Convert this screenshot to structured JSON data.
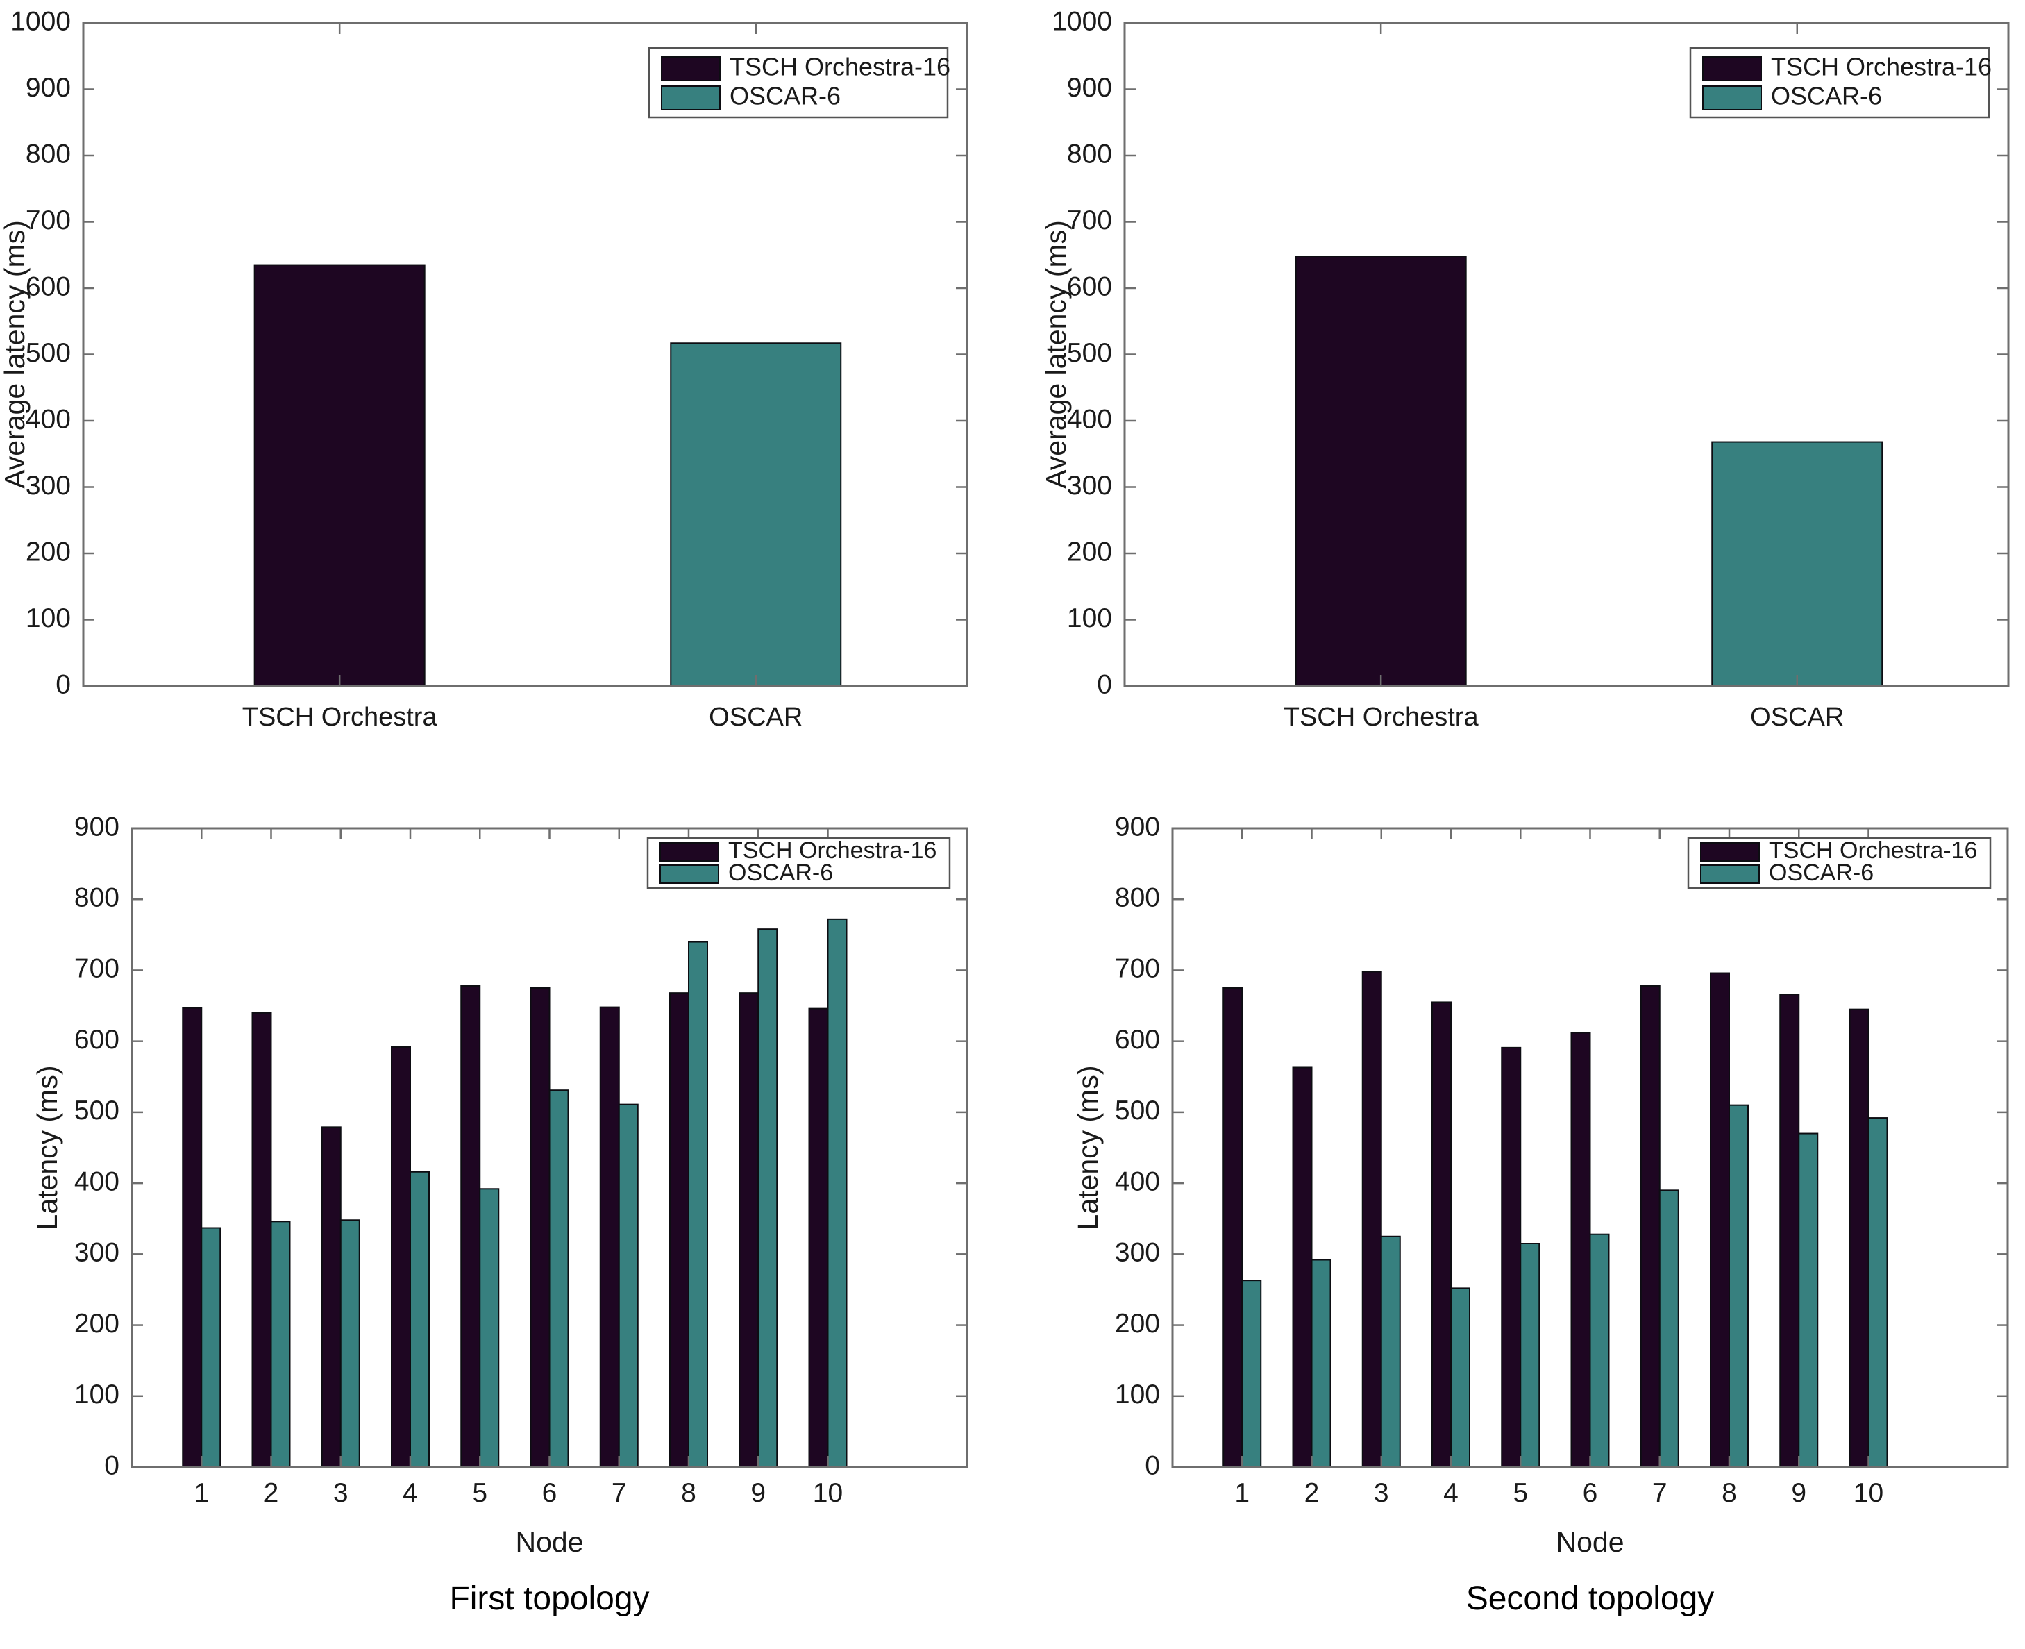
{
  "figure": {
    "background": "#ffffff",
    "axis_color": "#6e6e6e",
    "text_color": "#1a1a1a",
    "bar_edge_color": "#0d0d12",
    "legend_border_color": "#545454",
    "series_palette": [
      {
        "name": "TSCH Orchestra-16",
        "color": "#1e0622"
      },
      {
        "name": "OSCAR-6",
        "color": "#37807f"
      }
    ]
  },
  "chart_data": [
    {
      "id": "first-topology-average",
      "type": "bar",
      "categories": [
        "TSCH Orchestra",
        "OSCAR"
      ],
      "values": [
        635,
        517
      ],
      "bar_colors": [
        "#1e0622",
        "#37807f"
      ],
      "title": "",
      "xlabel": "",
      "ylabel": "Average latency (ms)",
      "caption": "",
      "ylim": [
        0,
        1000
      ],
      "ytick_step": 100,
      "grid": false,
      "legend": {
        "position": "top-right",
        "entries": [
          {
            "label": "TSCH Orchestra-16",
            "color": "#1e0622"
          },
          {
            "label": "OSCAR-6",
            "color": "#37807f"
          }
        ]
      }
    },
    {
      "id": "second-topology-average",
      "type": "bar",
      "categories": [
        "TSCH Orchestra",
        "OSCAR"
      ],
      "values": [
        648,
        368
      ],
      "bar_colors": [
        "#1e0622",
        "#37807f"
      ],
      "title": "",
      "xlabel": "",
      "ylabel": "Average latency (ms)",
      "caption": "",
      "ylim": [
        0,
        1000
      ],
      "ytick_step": 100,
      "grid": false,
      "legend": {
        "position": "top-right",
        "entries": [
          {
            "label": "TSCH Orchestra-16",
            "color": "#1e0622"
          },
          {
            "label": "OSCAR-6",
            "color": "#37807f"
          }
        ]
      }
    },
    {
      "id": "first-topology-per-node",
      "type": "bar",
      "categories": [
        "1",
        "2",
        "3",
        "4",
        "5",
        "6",
        "7",
        "8",
        "9",
        "10"
      ],
      "series": [
        {
          "name": "TSCH Orchestra-16",
          "color": "#1e0622",
          "values": [
            647,
            640,
            479,
            592,
            678,
            675,
            648,
            668,
            668,
            646
          ]
        },
        {
          "name": "OSCAR-6",
          "color": "#37807f",
          "values": [
            337,
            346,
            348,
            416,
            392,
            531,
            511,
            740,
            758,
            772
          ]
        }
      ],
      "title": "",
      "xlabel": "Node",
      "ylabel": "Latency (ms)",
      "caption": "First topology",
      "ylim": [
        0,
        900
      ],
      "ytick_step": 100,
      "grid": false,
      "legend": {
        "position": "top-right",
        "entries": [
          {
            "label": "TSCH Orchestra-16",
            "color": "#1e0622"
          },
          {
            "label": "OSCAR-6",
            "color": "#37807f"
          }
        ]
      }
    },
    {
      "id": "second-topology-per-node",
      "type": "bar",
      "categories": [
        "1",
        "2",
        "3",
        "4",
        "5",
        "6",
        "7",
        "8",
        "9",
        "10"
      ],
      "series": [
        {
          "name": "TSCH Orchestra-16",
          "color": "#1e0622",
          "values": [
            675,
            563,
            698,
            655,
            591,
            612,
            678,
            696,
            666,
            645
          ]
        },
        {
          "name": "OSCAR-6",
          "color": "#37807f",
          "values": [
            263,
            292,
            325,
            252,
            315,
            328,
            390,
            510,
            470,
            492
          ]
        }
      ],
      "title": "",
      "xlabel": "Node",
      "ylabel": "Latency (ms)",
      "caption": "Second topology",
      "ylim": [
        0,
        900
      ],
      "ytick_step": 100,
      "grid": false,
      "legend": {
        "position": "top-right",
        "entries": [
          {
            "label": "TSCH Orchestra-16",
            "color": "#1e0622"
          },
          {
            "label": "OSCAR-6",
            "color": "#37807f"
          }
        ]
      }
    }
  ]
}
